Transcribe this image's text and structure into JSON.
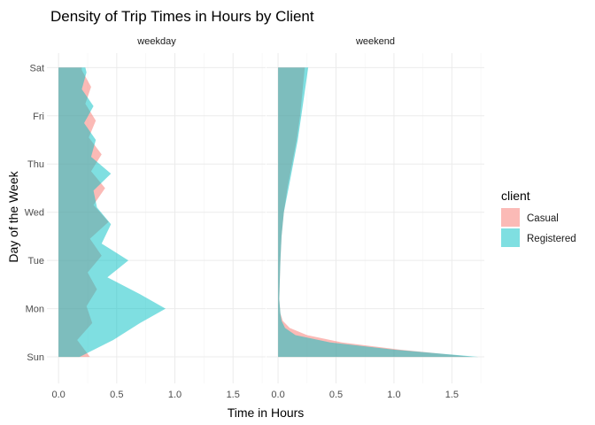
{
  "chart_data": {
    "type": "area",
    "title": "Density of Trip Times in Hours by Client",
    "xlabel": "Time in Hours",
    "ylabel": "Day of the Week",
    "facets": [
      "weekday",
      "weekend"
    ],
    "categories": [
      "Sun",
      "Mon",
      "Tue",
      "Wed",
      "Thu",
      "Fri",
      "Sat"
    ],
    "x_ticks": [
      "0.0",
      "0.5",
      "1.0",
      "1.5"
    ],
    "x_tick_values": [
      0,
      0.5,
      1.0,
      1.5
    ],
    "xlim": [
      -0.1,
      1.78
    ],
    "ylim": [
      0.45,
      7.3
    ],
    "grid": true,
    "legend": {
      "title": "client",
      "position": "right",
      "entries": [
        {
          "label": "Casual",
          "color": "#F8766D"
        },
        {
          "label": "Registered",
          "color": "#00BFC4"
        }
      ]
    },
    "series": [
      {
        "name": "Casual",
        "color": "#F8766D",
        "panels": {
          "weekday": [
            [
              0,
              0.27
            ],
            [
              0.35,
              0.16
            ],
            [
              0.7,
              0.29
            ],
            [
              1.05,
              0.24
            ],
            [
              1.4,
              0.33
            ],
            [
              1.75,
              0.25
            ],
            [
              2.1,
              0.37
            ],
            [
              2.45,
              0.27
            ],
            [
              2.8,
              0.43
            ],
            [
              3.15,
              0.3
            ],
            [
              3.5,
              0.4
            ],
            [
              3.85,
              0.28
            ],
            [
              4.2,
              0.37
            ],
            [
              4.55,
              0.26
            ],
            [
              4.9,
              0.32
            ],
            [
              5.25,
              0.23
            ],
            [
              5.6,
              0.28
            ],
            [
              5.95,
              0.2
            ],
            [
              6,
              0.2
            ]
          ],
          "weekend": [
            [
              0,
              1.68
            ],
            [
              0.15,
              1.05
            ],
            [
              0.3,
              0.55
            ],
            [
              0.45,
              0.25
            ],
            [
              0.6,
              0.1
            ],
            [
              0.75,
              0.04
            ],
            [
              0.9,
              0.02
            ],
            [
              1.2,
              0.01
            ],
            [
              2,
              0.02
            ],
            [
              2.5,
              0.03
            ],
            [
              3,
              0.05
            ],
            [
              3.5,
              0.08
            ],
            [
              4,
              0.12
            ],
            [
              4.5,
              0.16
            ],
            [
              5,
              0.19
            ],
            [
              5.5,
              0.21
            ],
            [
              6,
              0.23
            ]
          ]
        }
      },
      {
        "name": "Registered",
        "color": "#00BFC4",
        "panels": {
          "weekday": [
            [
              0,
              0.18
            ],
            [
              0.35,
              0.47
            ],
            [
              0.7,
              0.7
            ],
            [
              1.0,
              0.92
            ],
            [
              1.3,
              0.7
            ],
            [
              1.65,
              0.42
            ],
            [
              2.0,
              0.6
            ],
            [
              2.35,
              0.37
            ],
            [
              2.75,
              0.45
            ],
            [
              3.1,
              0.33
            ],
            [
              3.45,
              0.3
            ],
            [
              3.8,
              0.45
            ],
            [
              4.15,
              0.28
            ],
            [
              4.5,
              0.32
            ],
            [
              4.85,
              0.22
            ],
            [
              5.2,
              0.3
            ],
            [
              5.55,
              0.2
            ],
            [
              5.9,
              0.24
            ],
            [
              6,
              0.23
            ]
          ],
          "weekend": [
            [
              0,
              1.73
            ],
            [
              0.15,
              1.0
            ],
            [
              0.3,
              0.45
            ],
            [
              0.45,
              0.15
            ],
            [
              0.6,
              0.06
            ],
            [
              0.75,
              0.03
            ],
            [
              0.9,
              0.02
            ],
            [
              1.2,
              0.01
            ],
            [
              2,
              0.02
            ],
            [
              2.5,
              0.03
            ],
            [
              3,
              0.05
            ],
            [
              3.5,
              0.09
            ],
            [
              4,
              0.13
            ],
            [
              4.5,
              0.17
            ],
            [
              5,
              0.2
            ],
            [
              5.5,
              0.23
            ],
            [
              6,
              0.26
            ]
          ]
        }
      }
    ]
  }
}
